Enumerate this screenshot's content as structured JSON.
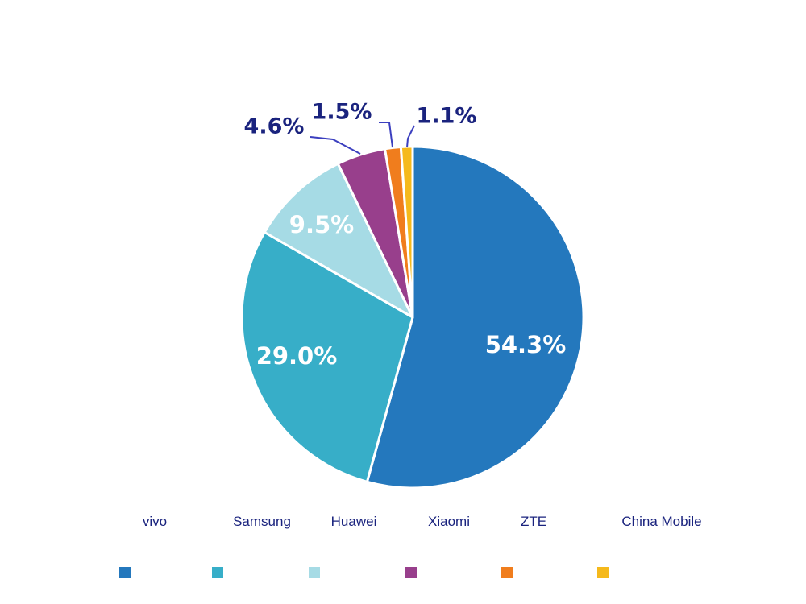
{
  "chart_data": {
    "type": "pie",
    "title": "",
    "unit": "%",
    "categories": [
      "vivo",
      "Samsung",
      "Huawei",
      "Xiaomi",
      "ZTE",
      "China Mobile"
    ],
    "values": [
      54.3,
      29.0,
      9.5,
      4.6,
      1.5,
      1.1
    ],
    "labels": [
      "54.3%",
      "29.0%",
      "9.5%",
      "4.6%",
      "1.5%",
      "1.1%"
    ],
    "colors": [
      "#2478bd",
      "#37aec8",
      "#a6dbe5",
      "#983f8c",
      "#f07d1d",
      "#f5b91c"
    ],
    "start_angle_deg": 0,
    "direction": "clockwise",
    "legend_position": "bottom"
  }
}
